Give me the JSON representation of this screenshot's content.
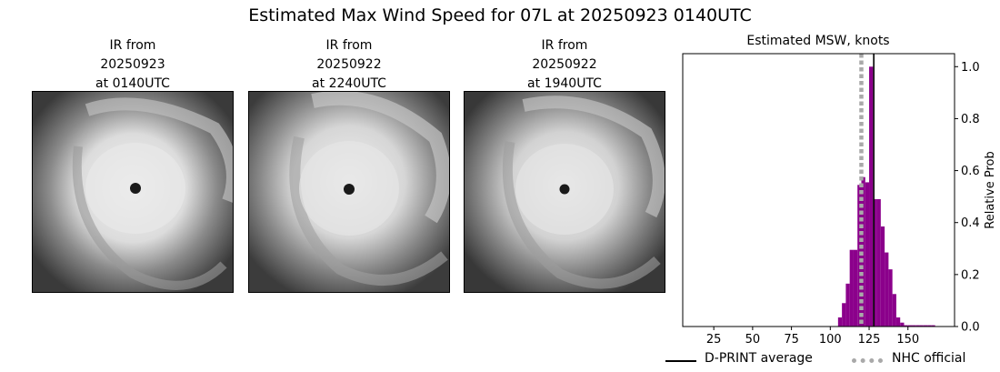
{
  "figure": {
    "suptitle": "Estimated Max Wind Speed for 07L at 20250923 0140UTC"
  },
  "panels": [
    {
      "title_line1": "IR from",
      "title_line2": "20250923",
      "title_line3": "at 0140UTC"
    },
    {
      "title_line1": "IR from",
      "title_line2": "20250922",
      "title_line3": "at 2240UTC"
    },
    {
      "title_line1": "IR from",
      "title_line2": "20250922",
      "title_line3": "at 1940UTC"
    }
  ],
  "chart_data": {
    "type": "bar",
    "title": "Estimated MSW, knots",
    "xlabel": "",
    "ylabel": "Relative Prob",
    "xlim": [
      5,
      180
    ],
    "ylim": [
      0,
      1.05
    ],
    "xticks": [
      25,
      50,
      75,
      100,
      125,
      150
    ],
    "yticks": [
      0.0,
      0.2,
      0.4,
      0.6,
      0.8,
      1.0
    ],
    "bar_color": "#8b008b",
    "bin_width": 2.5,
    "bars": [
      {
        "x": 106.25,
        "value": 0.035
      },
      {
        "x": 108.75,
        "value": 0.09
      },
      {
        "x": 111.25,
        "value": 0.165
      },
      {
        "x": 113.75,
        "value": 0.295
      },
      {
        "x": 116.25,
        "value": 0.295
      },
      {
        "x": 118.75,
        "value": 0.545
      },
      {
        "x": 121.25,
        "value": 0.575
      },
      {
        "x": 123.75,
        "value": 0.555
      },
      {
        "x": 126.25,
        "value": 1.0
      },
      {
        "x": 128.75,
        "value": 0.49
      },
      {
        "x": 131.25,
        "value": 0.49
      },
      {
        "x": 133.75,
        "value": 0.385
      },
      {
        "x": 136.25,
        "value": 0.285
      },
      {
        "x": 138.75,
        "value": 0.22
      },
      {
        "x": 141.25,
        "value": 0.125
      },
      {
        "x": 143.75,
        "value": 0.035
      },
      {
        "x": 146.25,
        "value": 0.015
      },
      {
        "x": 148.75,
        "value": 0.005
      },
      {
        "x": 151.25,
        "value": 0.005
      },
      {
        "x": 153.75,
        "value": 0.005
      },
      {
        "x": 156.25,
        "value": 0.005
      },
      {
        "x": 158.75,
        "value": 0.005
      },
      {
        "x": 161.25,
        "value": 0.005
      },
      {
        "x": 163.75,
        "value": 0.005
      },
      {
        "x": 166.25,
        "value": 0.005
      }
    ],
    "dprint_average": 128,
    "nhc_official": 120,
    "legend": {
      "placement": "bottom",
      "entries": [
        {
          "label": "D-PRINT average",
          "color": "#000000",
          "style": "solid"
        },
        {
          "label": "NHC official",
          "color": "#a9a9a9",
          "style": "dotted"
        }
      ]
    }
  }
}
